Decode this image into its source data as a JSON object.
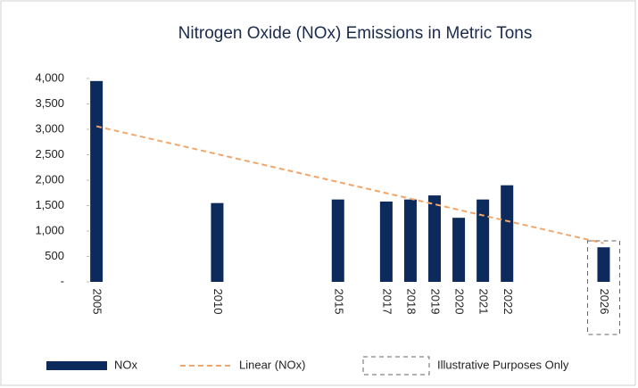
{
  "chart_data": {
    "type": "bar",
    "title": "Nitrogen Oxide (NOx) Emissions in Metric Tons",
    "x": [
      2005,
      2010,
      2015,
      2017,
      2018,
      2019,
      2020,
      2021,
      2022,
      2026
    ],
    "series": [
      {
        "name": "NOx",
        "color": "#0c2a5b",
        "values": [
          3950,
          1550,
          1620,
          1580,
          1620,
          1700,
          1260,
          1620,
          1900,
          680
        ]
      }
    ],
    "trendline": {
      "name": "Linear (NOx)",
      "color": "#f2a66a",
      "x": [
        2005,
        2026
      ],
      "values": [
        3060,
        760
      ]
    },
    "illustrative": {
      "label": "Illustrative Purposes Only",
      "x": 2026
    },
    "xlim": [
      2004.7,
      2026.5
    ],
    "ylim": [
      0,
      4000
    ],
    "yticks": [
      {
        "value": 0,
        "label": "-"
      },
      500,
      {
        "value": 1000,
        "label": "1,000"
      },
      {
        "value": 1500,
        "label": "1,500"
      },
      {
        "value": 2000,
        "label": "2,000"
      },
      {
        "value": 2500,
        "label": "2,500"
      },
      {
        "value": 3000,
        "label": "3,000"
      },
      {
        "value": 3500,
        "label": "3,500"
      },
      {
        "value": 4000,
        "label": "4,000"
      }
    ]
  }
}
